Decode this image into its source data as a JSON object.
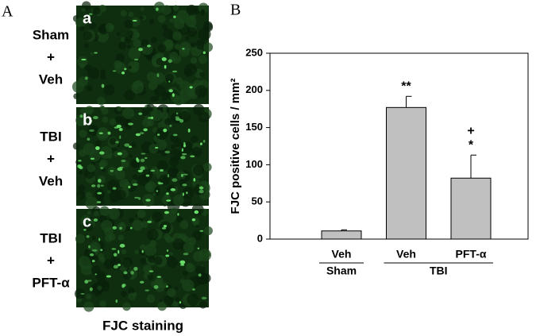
{
  "panel_a": {
    "label": "A",
    "images": [
      {
        "letter": "a",
        "lines": [
          "Sham",
          "+",
          "Veh"
        ]
      },
      {
        "letter": "b",
        "lines": [
          "TBI",
          "+",
          "Veh"
        ]
      },
      {
        "letter": "c",
        "lines": [
          "TBI",
          "+",
          "PFT-α"
        ]
      }
    ],
    "caption": "FJC  staining"
  },
  "chart_data": {
    "type": "bar",
    "panel_label": "B",
    "ylabel": "FJC positive cells / mm²",
    "categories": [
      "Veh",
      "Veh",
      "PFT-α"
    ],
    "groups": [
      "Sham",
      "TBI",
      "TBI"
    ],
    "values": [
      11,
      177,
      82
    ],
    "errors": [
      1.5,
      15,
      31
    ],
    "significance": [
      [],
      [
        "**"
      ],
      [
        "+",
        "*"
      ]
    ],
    "color": "#c0c0c0",
    "ylim": [
      0,
      250
    ],
    "yticks": [
      0,
      50,
      100,
      150,
      200,
      250
    ],
    "grid": false
  }
}
